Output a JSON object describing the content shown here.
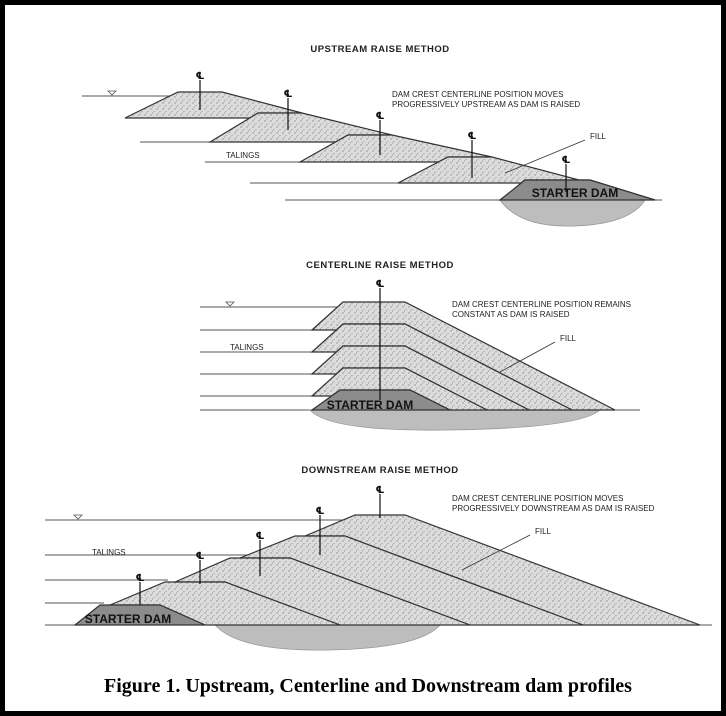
{
  "sections": [
    {
      "title": "UPSTREAM RAISE METHOD",
      "note": [
        "DAM CREST CENTERLINE POSITION MOVES",
        "PROGRESSIVELY UPSTREAM AS DAM IS RAISED"
      ],
      "fill": "FILL",
      "tailings": "TALINGS",
      "starter": "STARTER DAM"
    },
    {
      "title": "CENTERLINE RAISE METHOD",
      "note": [
        "DAM CREST CENTERLINE POSITION REMAINS",
        "CONSTANT AS DAM IS RAISED"
      ],
      "fill": "FILL",
      "tailings": "TALINGS",
      "starter": "STARTER DAM"
    },
    {
      "title": "DOWNSTREAM RAISE METHOD",
      "note": [
        "DAM CREST CENTERLINE POSITION MOVES",
        "PROGRESSIVELY DOWNSTREAM AS DAM IS RAISED"
      ],
      "fill": "FILL",
      "tailings": "TALINGS",
      "starter": "STARTER DAM"
    }
  ],
  "centerline_symbol": "℄",
  "caption": "Figure 1. Upstream, Centerline and Downstream dam profiles"
}
